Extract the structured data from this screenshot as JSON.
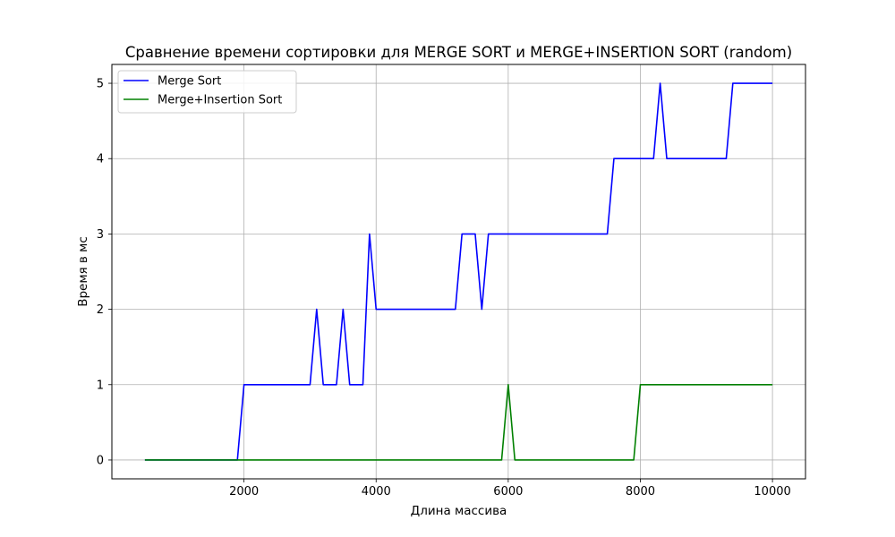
{
  "chart_data": {
    "type": "line",
    "title": "Сравнение времени сортировки для MERGE SORT и MERGE+INSERTION SORT (random)",
    "xlabel": "Длина массива",
    "ylabel": "Время в мс",
    "xlim": [
      0,
      10500
    ],
    "ylim": [
      -0.25,
      5.25
    ],
    "xticks": [
      2000,
      4000,
      6000,
      8000,
      10000
    ],
    "yticks": [
      0,
      1,
      2,
      3,
      4,
      5
    ],
    "xtick_labels": [
      "2000",
      "4000",
      "6000",
      "8000",
      "10000"
    ],
    "ytick_labels": [
      "0",
      "1",
      "2",
      "3",
      "4",
      "5"
    ],
    "grid": true,
    "legend_position": "upper-left",
    "x": [
      500,
      600,
      700,
      800,
      900,
      1000,
      1100,
      1200,
      1300,
      1400,
      1500,
      1600,
      1700,
      1800,
      1900,
      2000,
      2100,
      2200,
      2300,
      2400,
      2500,
      2600,
      2700,
      2800,
      2900,
      3000,
      3100,
      3200,
      3300,
      3400,
      3500,
      3600,
      3700,
      3800,
      3900,
      4000,
      4100,
      4200,
      4300,
      4400,
      4500,
      4600,
      4700,
      4800,
      4900,
      5000,
      5100,
      5200,
      5300,
      5400,
      5500,
      5600,
      5700,
      5800,
      5900,
      6000,
      6100,
      6200,
      6300,
      6400,
      6500,
      6600,
      6700,
      6800,
      6900,
      7000,
      7100,
      7200,
      7300,
      7400,
      7500,
      7600,
      7700,
      7800,
      7900,
      8000,
      8100,
      8200,
      8300,
      8400,
      8500,
      8600,
      8700,
      8800,
      8900,
      9000,
      9100,
      9200,
      9300,
      9400,
      9500,
      9600,
      9700,
      9800,
      9900,
      10000
    ],
    "series": [
      {
        "name": "Merge Sort",
        "color": "#0000ff",
        "values": [
          0,
          0,
          0,
          0,
          0,
          0,
          0,
          0,
          0,
          0,
          0,
          0,
          0,
          0,
          0,
          1,
          1,
          1,
          1,
          1,
          1,
          1,
          1,
          1,
          1,
          1,
          2,
          1,
          1,
          1,
          2,
          1,
          1,
          1,
          3,
          2,
          2,
          2,
          2,
          2,
          2,
          2,
          2,
          2,
          2,
          2,
          2,
          2,
          3,
          3,
          3,
          2,
          3,
          3,
          3,
          3,
          3,
          3,
          3,
          3,
          3,
          3,
          3,
          3,
          3,
          3,
          3,
          3,
          3,
          3,
          3,
          4,
          4,
          4,
          4,
          4,
          4,
          4,
          5,
          4,
          4,
          4,
          4,
          4,
          4,
          4,
          4,
          4,
          4,
          5,
          5,
          5,
          5,
          5,
          5,
          5
        ]
      },
      {
        "name": "Merge+Insertion Sort",
        "color": "#008000",
        "values": [
          0,
          0,
          0,
          0,
          0,
          0,
          0,
          0,
          0,
          0,
          0,
          0,
          0,
          0,
          0,
          0,
          0,
          0,
          0,
          0,
          0,
          0,
          0,
          0,
          0,
          0,
          0,
          0,
          0,
          0,
          0,
          0,
          0,
          0,
          0,
          0,
          0,
          0,
          0,
          0,
          0,
          0,
          0,
          0,
          0,
          0,
          0,
          0,
          0,
          0,
          0,
          0,
          0,
          0,
          0,
          1,
          0,
          0,
          0,
          0,
          0,
          0,
          0,
          0,
          0,
          0,
          0,
          0,
          0,
          0,
          0,
          0,
          0,
          0,
          0,
          1,
          1,
          1,
          1,
          1,
          1,
          1,
          1,
          1,
          1,
          1,
          1,
          1,
          1,
          1,
          1,
          1,
          1,
          1,
          1,
          1
        ]
      }
    ]
  }
}
